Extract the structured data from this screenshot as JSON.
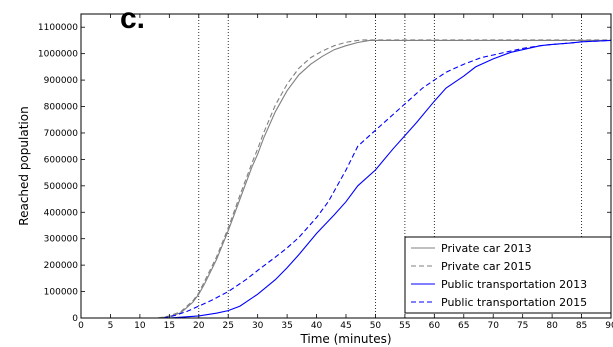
{
  "panel_label": "c.",
  "chart_data": {
    "type": "line",
    "xlabel": "Time (minutes)",
    "ylabel": "Reached population",
    "xlim": [
      0,
      90
    ],
    "ylim": [
      0,
      1150000
    ],
    "x_ticks": [
      0,
      5,
      10,
      15,
      20,
      25,
      30,
      35,
      40,
      45,
      50,
      55,
      60,
      65,
      70,
      75,
      80,
      85,
      90
    ],
    "x_tick_labels": [
      "0",
      "5",
      "10",
      "15",
      "20",
      "25",
      "30",
      "35",
      "40",
      "45",
      "50",
      "55",
      "60",
      "65",
      "70",
      "75",
      "80",
      "85",
      "90"
    ],
    "y_ticks": [
      0,
      100000,
      200000,
      300000,
      400000,
      500000,
      600000,
      700000,
      800000,
      900000,
      1000000,
      1100000
    ],
    "y_tick_labels": [
      "0",
      "100000",
      "200000",
      "300000",
      "400000",
      "500000",
      "600000",
      "700000",
      "800000",
      "900000",
      "1000000",
      "1100000"
    ],
    "vertical_reference_lines": [
      20,
      25,
      50,
      55,
      60,
      85
    ],
    "grid": false,
    "legend_position": "bottom-right",
    "series": [
      {
        "name": "Private car 2013",
        "color": "#808080",
        "dash": "solid",
        "x": [
          13,
          15,
          17,
          19,
          20,
          21,
          23,
          25,
          27,
          29,
          30,
          31,
          33,
          35,
          37,
          39,
          41,
          43,
          45,
          47,
          49,
          50,
          60,
          70,
          80,
          90
        ],
        "y": [
          0,
          5000,
          20000,
          60000,
          90000,
          130000,
          220000,
          330000,
          450000,
          570000,
          620000,
          680000,
          780000,
          860000,
          920000,
          960000,
          990000,
          1015000,
          1030000,
          1042000,
          1050000,
          1050000,
          1050000,
          1050000,
          1050000,
          1050000
        ]
      },
      {
        "name": "Private car 2015",
        "color": "#808080",
        "dash": "dashed",
        "x": [
          13,
          15,
          17,
          19,
          20,
          21,
          23,
          25,
          27,
          29,
          30,
          31,
          33,
          35,
          37,
          39,
          41,
          43,
          45,
          47,
          48,
          50,
          60,
          70,
          80,
          90
        ],
        "y": [
          0,
          7000,
          25000,
          65000,
          95000,
          140000,
          230000,
          340000,
          465000,
          585000,
          640000,
          700000,
          805000,
          885000,
          945000,
          985000,
          1010000,
          1030000,
          1043000,
          1050000,
          1052000,
          1052000,
          1052000,
          1052000,
          1052000,
          1052000
        ]
      },
      {
        "name": "Public transportation 2013",
        "color": "#0000ff",
        "dash": "solid",
        "x": [
          15,
          17,
          20,
          23,
          25,
          27,
          30,
          33,
          35,
          37,
          40,
          43,
          45,
          47,
          50,
          53,
          55,
          57,
          60,
          62,
          65,
          67,
          70,
          73,
          75,
          78,
          80,
          83,
          85,
          88,
          90
        ],
        "y": [
          0,
          3000,
          8000,
          18000,
          28000,
          45000,
          90000,
          145000,
          190000,
          240000,
          320000,
          390000,
          440000,
          500000,
          560000,
          640000,
          690000,
          740000,
          820000,
          870000,
          915000,
          950000,
          980000,
          1005000,
          1015000,
          1030000,
          1035000,
          1040000,
          1045000,
          1048000,
          1050000
        ]
      },
      {
        "name": "Public transportation 2015",
        "color": "#0000ff",
        "dash": "dashed",
        "x": [
          14,
          16,
          18,
          20,
          22,
          25,
          28,
          30,
          33,
          35,
          37,
          40,
          42,
          45,
          47,
          50,
          53,
          55,
          58,
          60,
          62,
          65,
          68,
          70,
          73,
          75,
          78,
          80,
          83,
          85,
          88,
          90
        ],
        "y": [
          0,
          10000,
          25000,
          45000,
          65000,
          100000,
          145000,
          180000,
          230000,
          265000,
          305000,
          380000,
          440000,
          560000,
          650000,
          710000,
          770000,
          810000,
          870000,
          900000,
          930000,
          960000,
          985000,
          995000,
          1010000,
          1020000,
          1030000,
          1035000,
          1040000,
          1045000,
          1048000,
          1050000
        ]
      }
    ]
  }
}
